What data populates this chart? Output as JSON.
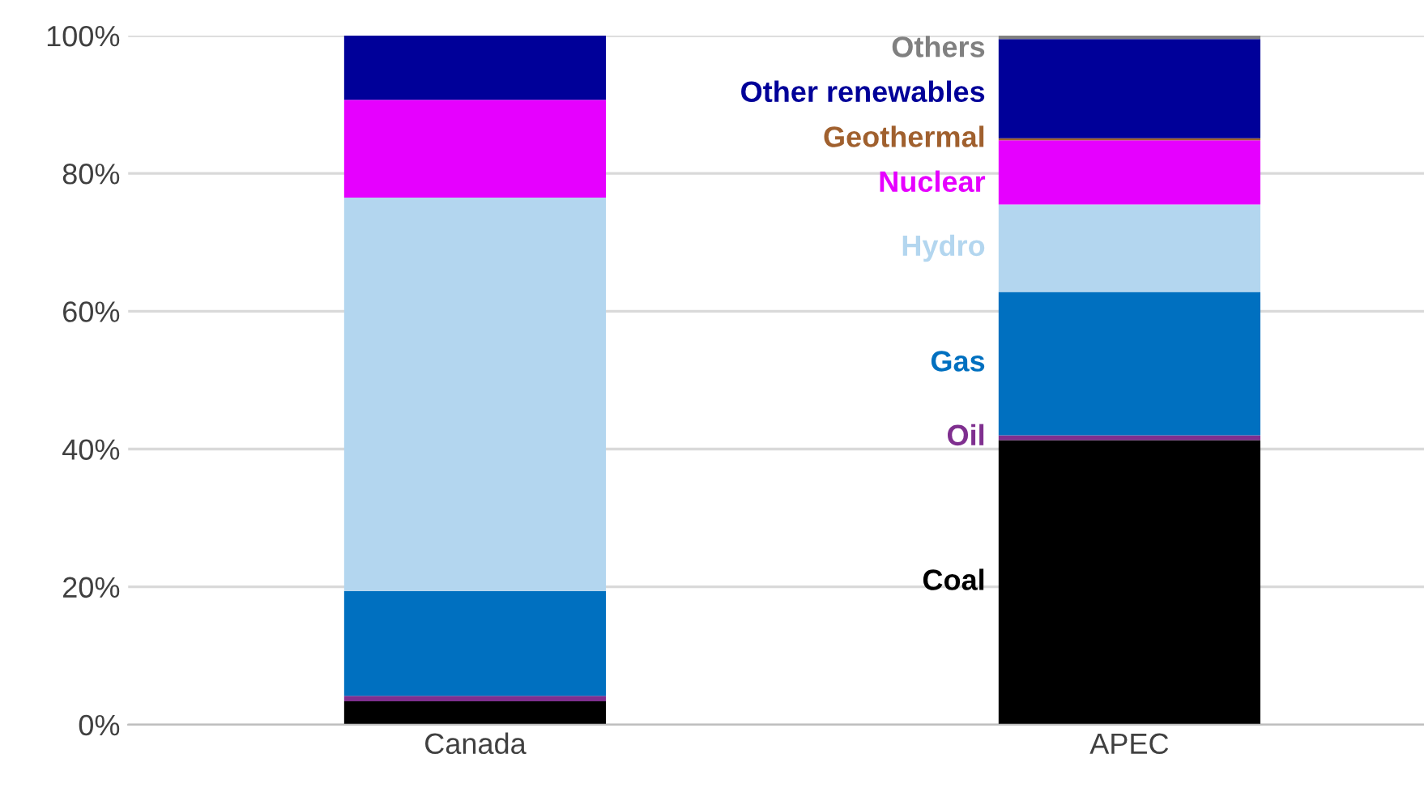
{
  "chart_data": {
    "type": "bar",
    "stacked": true,
    "categories": [
      "Canada",
      "APEC"
    ],
    "series": [
      {
        "name": "Coal",
        "color": "#000000",
        "values": [
          3.4,
          41.3
        ]
      },
      {
        "name": "Oil",
        "color": "#7f2f8f",
        "values": [
          0.8,
          0.7
        ]
      },
      {
        "name": "Gas",
        "color": "#0070c0",
        "values": [
          15.2,
          20.8
        ]
      },
      {
        "name": "Hydro",
        "color": "#b3d6ef",
        "values": [
          57.1,
          12.7
        ]
      },
      {
        "name": "Nuclear",
        "color": "#e600ff",
        "values": [
          14.2,
          9.3
        ]
      },
      {
        "name": "Geothermal",
        "color": "#a0602e",
        "values": [
          0,
          0.3
        ]
      },
      {
        "name": "Other renewables",
        "color": "#000099",
        "values": [
          9.3,
          14.4
        ]
      },
      {
        "name": "Others",
        "color": "#808080",
        "values": [
          0,
          0.5
        ]
      }
    ],
    "ylim": [
      0,
      100
    ],
    "yticks": [
      {
        "value": 0,
        "label": "0%"
      },
      {
        "value": 20,
        "label": "20%"
      },
      {
        "value": 40,
        "label": "40%"
      },
      {
        "value": 60,
        "label": "60%"
      },
      {
        "value": 80,
        "label": "80%"
      },
      {
        "value": 100,
        "label": "100%"
      }
    ],
    "grid": "y",
    "legend": false
  }
}
